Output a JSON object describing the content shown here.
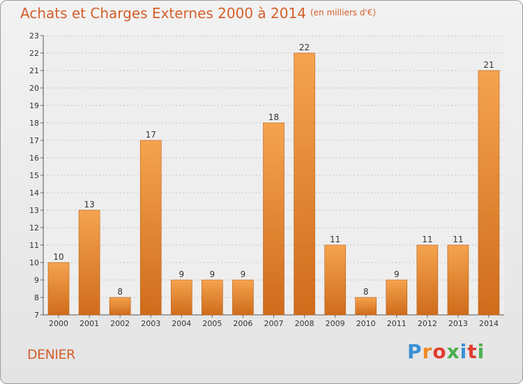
{
  "title": "Achats et Charges Externes 2000 à 2014",
  "subtitle": "(en milliers d'€)",
  "commune": "DENIER",
  "logo": {
    "letters": [
      "P",
      "r",
      "o",
      "x",
      "i",
      "t",
      "i"
    ],
    "colors": [
      "#3a8fd6",
      "#f08a24",
      "#e23b30",
      "#4caf50",
      "#3a8fd6",
      "#e23b30",
      "#4caf50"
    ]
  },
  "colors": {
    "accent": "#d45f2a",
    "bar_top": "#f5a34e",
    "bar_bottom": "#cf6c1c",
    "bar_edge": "#b85e18",
    "grid": "#c4c4c4",
    "plot_bg": "#eeeeee"
  },
  "chart_data": {
    "type": "bar",
    "categories": [
      "2000",
      "2001",
      "2002",
      "2003",
      "2004",
      "2005",
      "2006",
      "2007",
      "2008",
      "2009",
      "2010",
      "2011",
      "2012",
      "2013",
      "2014"
    ],
    "values": [
      10,
      13,
      8,
      17,
      9,
      9,
      9,
      18,
      22,
      11,
      8,
      9,
      11,
      11,
      21
    ],
    "ylim": [
      7,
      23
    ],
    "yticks": [
      7,
      8,
      9,
      10,
      11,
      12,
      13,
      14,
      15,
      16,
      17,
      18,
      19,
      20,
      21,
      22,
      23
    ],
    "grid": true
  }
}
